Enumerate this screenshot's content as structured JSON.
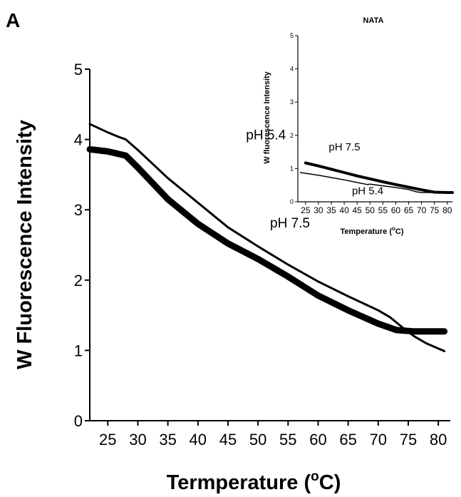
{
  "panel_label": "A",
  "chart_data": [
    {
      "type": "line",
      "title": "",
      "xlabel": "Termperature (",
      "xlabel_super": "o",
      "xlabel_unit": "C)",
      "ylabel": "W Fluorescence Intensity",
      "xlim": [
        22,
        82
      ],
      "ylim": [
        0,
        5
      ],
      "x_ticks": [
        25,
        30,
        35,
        40,
        45,
        50,
        55,
        60,
        65,
        70,
        75,
        80
      ],
      "y_ticks": [
        0,
        1,
        2,
        3,
        4,
        5
      ],
      "grid": false,
      "series": [
        {
          "name": "pH 5.4",
          "x": [
            22,
            25,
            27,
            28,
            30,
            35,
            40,
            45,
            50,
            55,
            60,
            65,
            70,
            72,
            74,
            76,
            78,
            81
          ],
          "y": [
            4.22,
            4.1,
            4.03,
            4.0,
            3.85,
            3.45,
            3.1,
            2.75,
            2.48,
            2.22,
            1.98,
            1.77,
            1.57,
            1.47,
            1.33,
            1.2,
            1.1,
            0.99
          ]
        },
        {
          "name": "pH 7.5",
          "x": [
            22,
            25,
            28,
            30,
            35,
            40,
            45,
            50,
            55,
            60,
            65,
            70,
            73,
            76,
            81
          ],
          "y": [
            3.86,
            3.83,
            3.77,
            3.6,
            3.15,
            2.8,
            2.52,
            2.3,
            2.05,
            1.78,
            1.57,
            1.38,
            1.29,
            1.27,
            1.27
          ]
        }
      ],
      "annotations": [
        {
          "text": "pH 5.4",
          "x": 48,
          "y": 4.0
        },
        {
          "text": "pH 7.5",
          "x": 52,
          "y": 2.75
        }
      ],
      "series_styles": {
        "pH 5.4": "#000000",
        "pH 7.5": "#000000"
      }
    },
    {
      "type": "line",
      "title": "NATA",
      "xlabel": "Temperature (",
      "xlabel_super": "o",
      "xlabel_unit": "C)",
      "ylabel": "W fluorescence Intensity",
      "xlim": [
        22,
        82
      ],
      "ylim": [
        0,
        5
      ],
      "x_ticks": [
        25,
        30,
        35,
        40,
        45,
        50,
        55,
        60,
        65,
        70,
        75,
        80
      ],
      "y_ticks": [
        0,
        1,
        2,
        3,
        4,
        5
      ],
      "grid": false,
      "series": [
        {
          "name": "pH 7.5",
          "x": [
            25,
            30,
            35,
            40,
            45,
            50,
            55,
            60,
            65,
            70,
            75,
            80,
            82
          ],
          "y": [
            1.17,
            1.08,
            0.98,
            0.88,
            0.78,
            0.69,
            0.6,
            0.52,
            0.44,
            0.36,
            0.29,
            0.28,
            0.28
          ]
        },
        {
          "name": "pH 5.4",
          "x": [
            23,
            30,
            40,
            49,
            50,
            55,
            60,
            65,
            68,
            70,
            75,
            80,
            82
          ],
          "y": [
            0.88,
            0.8,
            0.66,
            0.52,
            0.53,
            0.48,
            0.43,
            0.37,
            0.3,
            0.28,
            0.28,
            0.28,
            0.28
          ]
        }
      ],
      "annotations": [
        {
          "text": "pH 7.5",
          "x": 34,
          "y": 1.55
        },
        {
          "text": "pH 5.4",
          "x": 43,
          "y": 0.22
        }
      ]
    }
  ]
}
